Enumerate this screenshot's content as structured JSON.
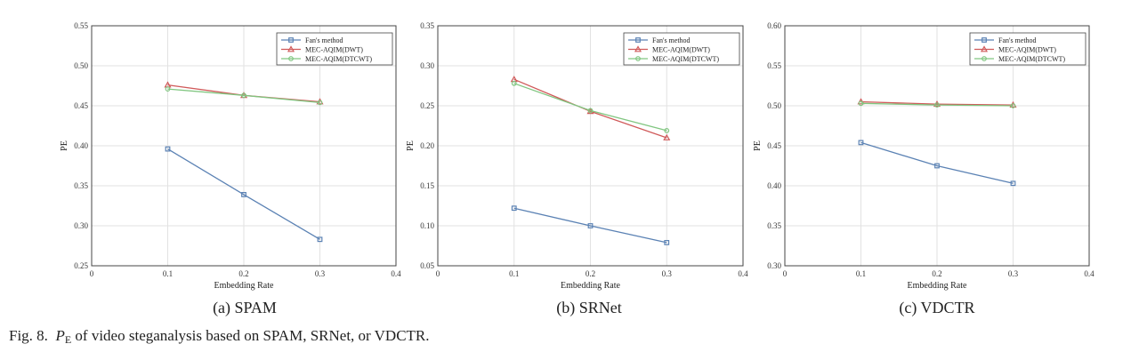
{
  "chart_data": [
    {
      "type": "line",
      "xlabel": "Embedding Rate",
      "ylabel": "PE",
      "xlim": [
        0,
        0.4
      ],
      "ylim": [
        0.25,
        0.55
      ],
      "xticks": [
        "0",
        "0.1",
        "0.2",
        "0.3",
        "0.4"
      ],
      "yticks": [
        "0.25",
        "0.30",
        "0.35",
        "0.40",
        "0.45",
        "0.50",
        "0.55"
      ],
      "grid": true,
      "legend_position": "top-right",
      "x": [
        0.1,
        0.2,
        0.3
      ],
      "series": [
        {
          "name": "Fan's method",
          "values": [
            0.396,
            0.339,
            0.283
          ],
          "color": "#5b82b4",
          "marker": "square"
        },
        {
          "name": "MEC-AQIM(DWT)",
          "values": [
            0.476,
            0.463,
            0.455
          ],
          "color": "#d05a5a",
          "marker": "triangle"
        },
        {
          "name": "MEC-AQIM(DTCWT)",
          "values": [
            0.471,
            0.463,
            0.454
          ],
          "color": "#80c680",
          "marker": "circle"
        }
      ],
      "caption": "(a) SPAM"
    },
    {
      "type": "line",
      "xlabel": "Embedding Rate",
      "ylabel": "PE",
      "xlim": [
        0,
        0.4
      ],
      "ylim": [
        0.05,
        0.35
      ],
      "xticks": [
        "0",
        "0.1",
        "0.2",
        "0.3",
        "0.4"
      ],
      "yticks": [
        "0.05",
        "0.10",
        "0.15",
        "0.20",
        "0.25",
        "0.30",
        "0.35"
      ],
      "grid": true,
      "legend_position": "top-right",
      "x": [
        0.1,
        0.2,
        0.3
      ],
      "series": [
        {
          "name": "Fan's method",
          "values": [
            0.122,
            0.1,
            0.079
          ],
          "color": "#5b82b4",
          "marker": "square"
        },
        {
          "name": "MEC-AQIM(DWT)",
          "values": [
            0.283,
            0.243,
            0.21
          ],
          "color": "#d05a5a",
          "marker": "triangle"
        },
        {
          "name": "MEC-AQIM(DTCWT)",
          "values": [
            0.278,
            0.244,
            0.219
          ],
          "color": "#80c680",
          "marker": "circle"
        }
      ],
      "caption": "(b) SRNet"
    },
    {
      "type": "line",
      "xlabel": "Embedding Rate",
      "ylabel": "PE",
      "xlim": [
        0,
        0.4
      ],
      "ylim": [
        0.3,
        0.6
      ],
      "xticks": [
        "0",
        "0.1",
        "0.2",
        "0.3",
        "0.4"
      ],
      "yticks": [
        "0.30",
        "0.35",
        "0.40",
        "0.45",
        "0.50",
        "0.55",
        "0.60"
      ],
      "grid": true,
      "legend_position": "top-right",
      "x": [
        0.1,
        0.2,
        0.3
      ],
      "series": [
        {
          "name": "Fan's method",
          "values": [
            0.454,
            0.425,
            0.403
          ],
          "color": "#5b82b4",
          "marker": "square"
        },
        {
          "name": "MEC-AQIM(DWT)",
          "values": [
            0.505,
            0.502,
            0.501
          ],
          "color": "#d05a5a",
          "marker": "triangle"
        },
        {
          "name": "MEC-AQIM(DTCWT)",
          "values": [
            0.503,
            0.501,
            0.5
          ],
          "color": "#80c680",
          "marker": "circle"
        }
      ],
      "caption": "(c) VDCTR"
    }
  ],
  "figure_caption": {
    "prefix": "Fig. 8.",
    "symbol": "P",
    "subscript": "E",
    "text": "of video steganalysis based on SPAM, SRNet, or VDCTR."
  }
}
